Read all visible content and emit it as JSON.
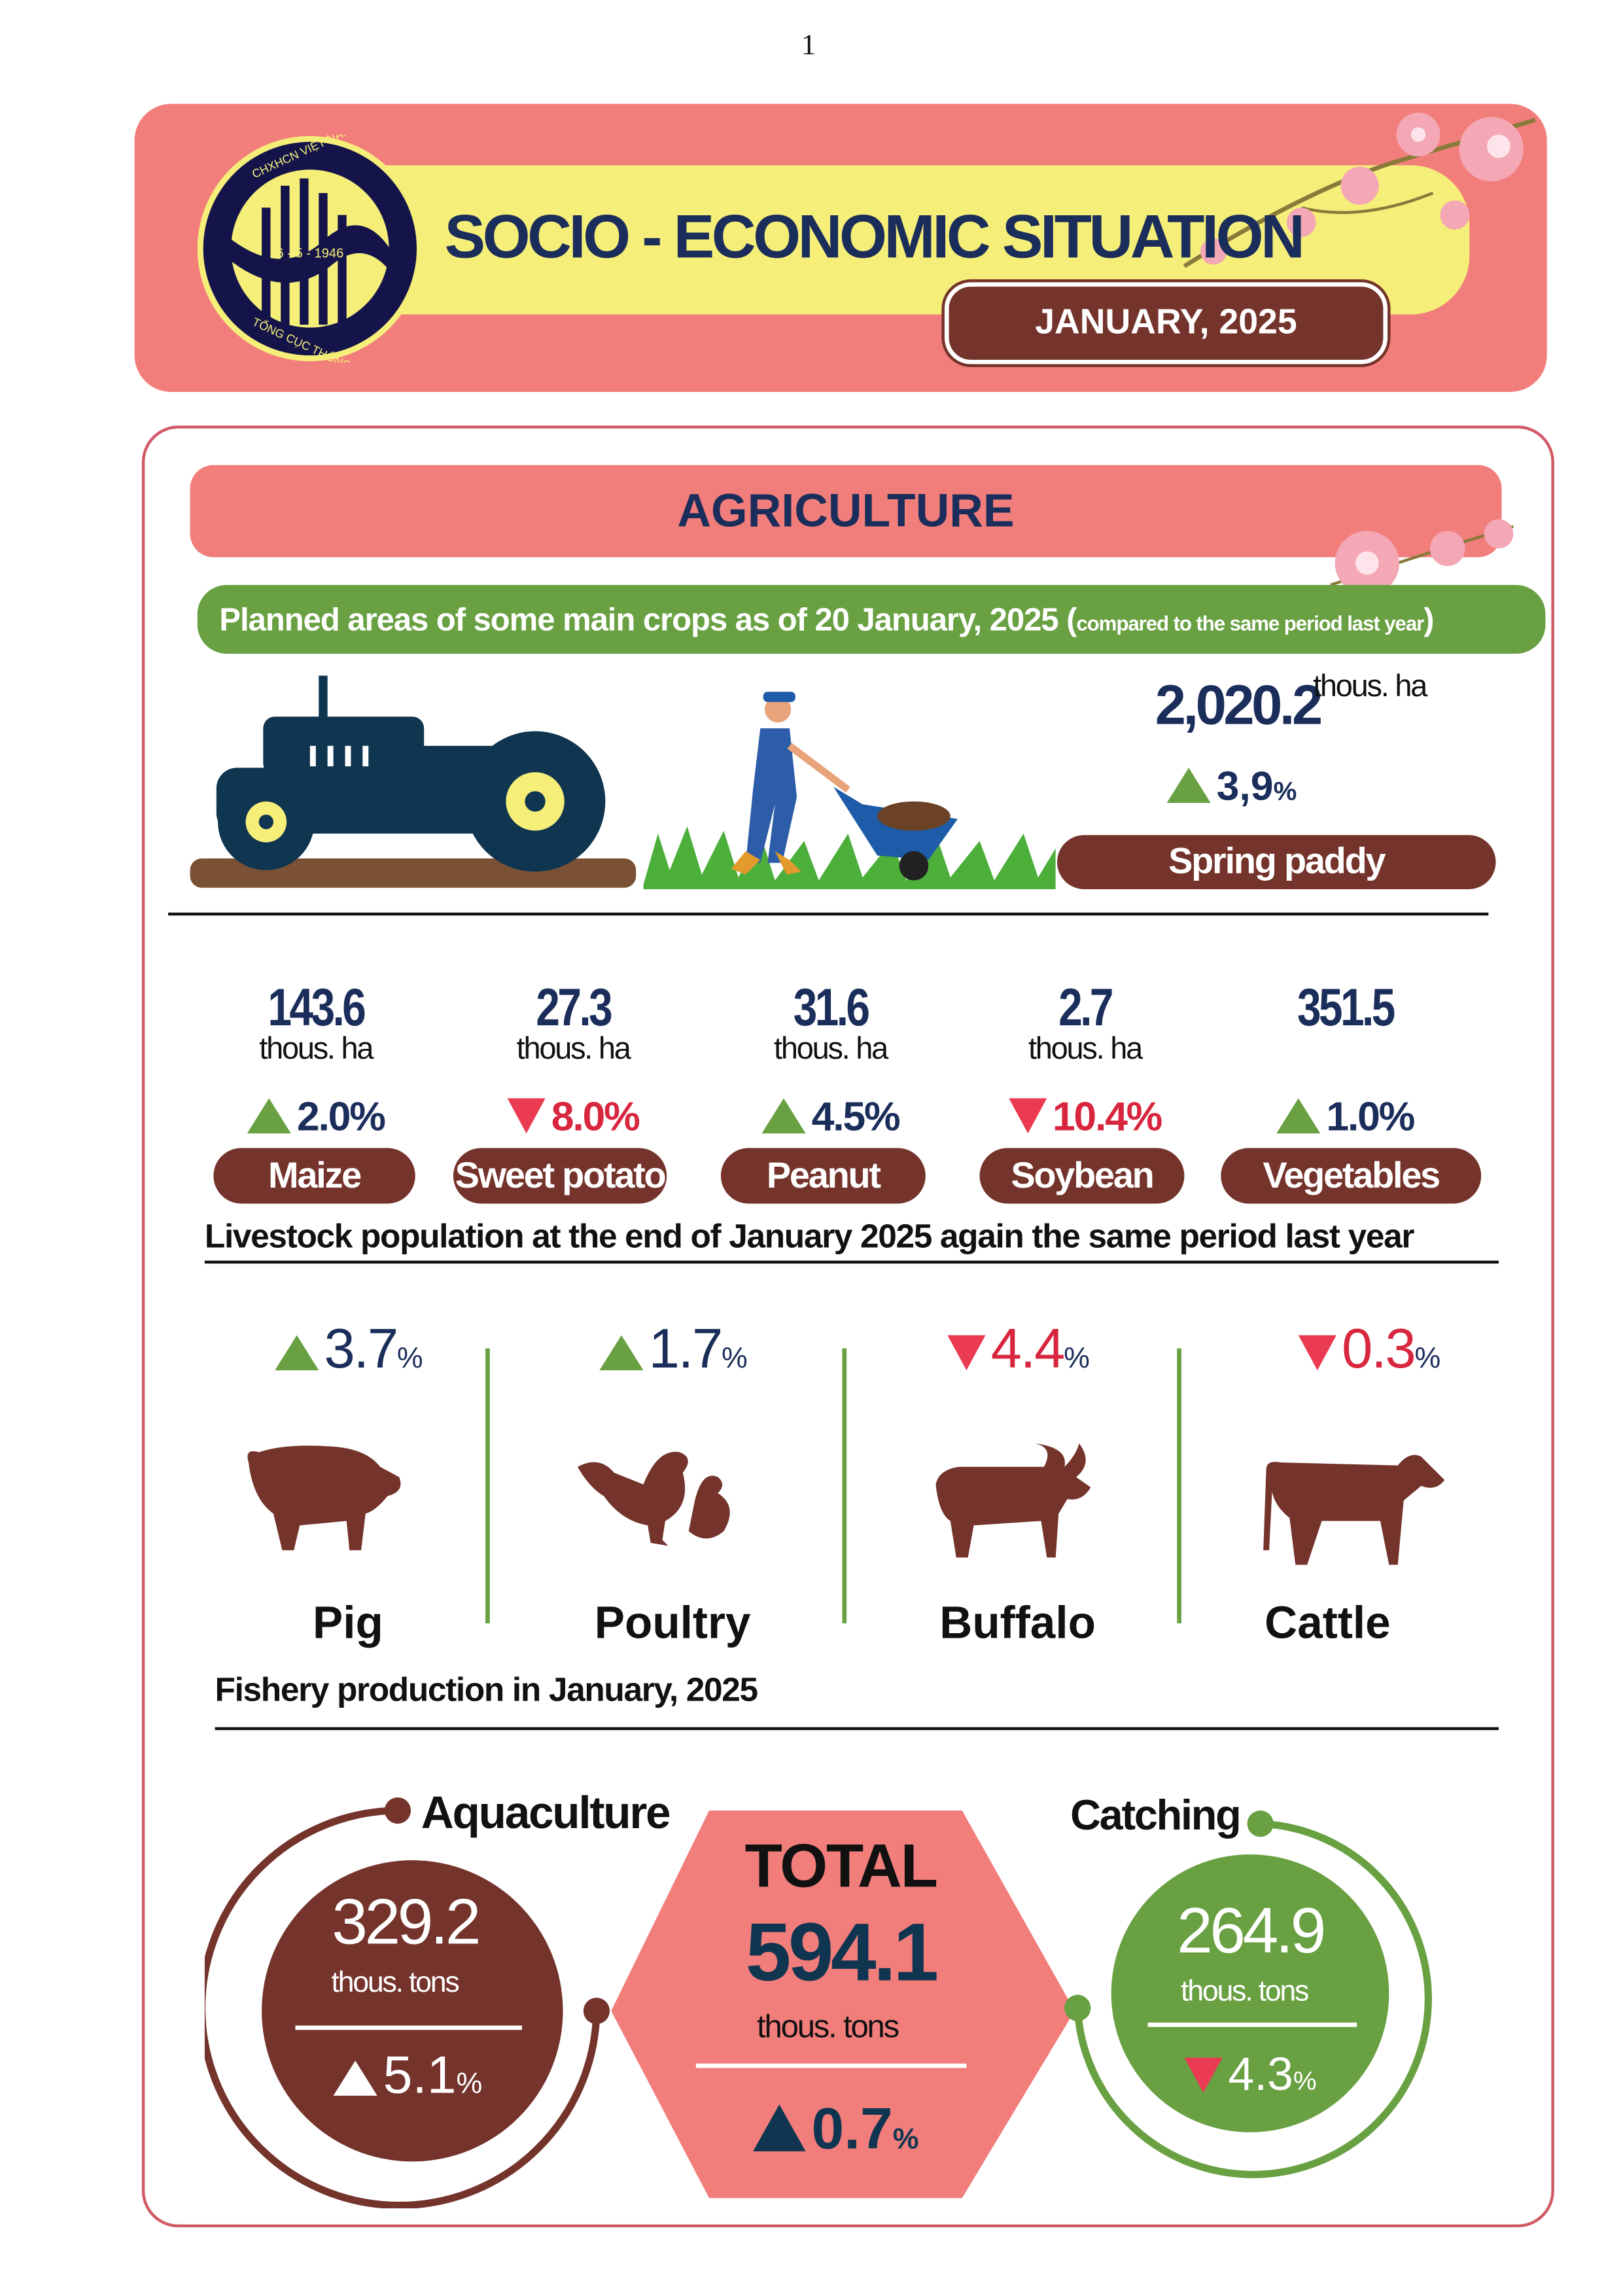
{
  "page_number": "1",
  "header": {
    "logo_text_top": "CHXHCN VIỆT NAM",
    "logo_date": "6 - 5 - 1946",
    "logo_text_bottom": "TỔNG CỤC THỐNG KÊ",
    "title": "SOCIO - ECONOMIC SITUATION",
    "period": "JANUARY, 2025"
  },
  "colors": {
    "coral": "#f27e7c",
    "yellow": "#f5ef7a",
    "brown": "#74332b",
    "navy": "#1b2d5a",
    "green": "#68a042",
    "red": "#ea3b52"
  },
  "agriculture": {
    "title": "AGRICULTURE",
    "crops_heading": "Planned areas of some main crops as of 20 January, 2025",
    "crops_heading_note": "compared to the same period last year",
    "spring_paddy": {
      "value": "2,020.2",
      "unit": "thous. ha",
      "change": "3,9",
      "pct": "%",
      "direction": "up",
      "label": "Spring paddy"
    },
    "crops": [
      {
        "value": "143.6",
        "unit": "thous. ha",
        "change": "2.0%",
        "direction": "up",
        "label": "Maize"
      },
      {
        "value": "27.3",
        "unit": "thous. ha",
        "change": "8.0%",
        "direction": "down",
        "label": "Sweet potato"
      },
      {
        "value": "31.6",
        "unit": "thous. ha",
        "change": "4.5%",
        "direction": "up",
        "label": "Peanut"
      },
      {
        "value": "2.7",
        "unit": "thous. ha",
        "change": "10.4%",
        "direction": "down",
        "label": "Soybean"
      },
      {
        "value": "351.5",
        "unit": "",
        "change": "1.0%",
        "direction": "up",
        "label": "Vegetables"
      }
    ],
    "livestock_heading": "Livestock population at the end of January 2025 again the same period last year",
    "livestock": [
      {
        "change": "3.7",
        "pct": "%",
        "direction": "up",
        "label": "Pig"
      },
      {
        "change": "1.7",
        "pct": "%",
        "direction": "up",
        "label": "Poultry"
      },
      {
        "change": "4.4",
        "pct": "%",
        "direction": "down",
        "label": "Buffalo"
      },
      {
        "change": "0.3",
        "pct": "%",
        "direction": "down",
        "label": "Cattle"
      }
    ],
    "fishery_heading": "Fishery production in January, 2025",
    "fishery": {
      "aquaculture": {
        "label": "Aquaculture",
        "value": "329.2",
        "unit": "thous. tons",
        "change": "5.1",
        "pct": "%",
        "direction": "up"
      },
      "total": {
        "label": "TOTAL",
        "value": "594.1",
        "unit": "thous. tons",
        "change": "0.7",
        "pct": "%",
        "direction": "up"
      },
      "catching": {
        "label": "Catching",
        "value": "264.9",
        "unit": "thous. tons",
        "change": "4.3",
        "pct": "%",
        "direction": "down"
      }
    }
  }
}
